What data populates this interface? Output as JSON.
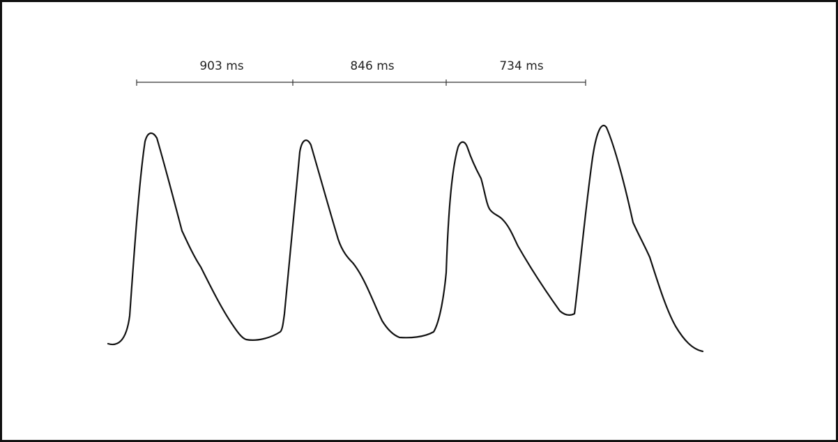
{
  "diagram": {
    "type": "pulse-waveform",
    "stroke_color": "#111111",
    "background_color": "#ffffff",
    "beats": 4,
    "intervals": [
      {
        "label": "903 ms",
        "value_ms": 903
      },
      {
        "label": "846 ms",
        "value_ms": 846
      },
      {
        "label": "734 ms",
        "value_ms": 734
      }
    ]
  }
}
